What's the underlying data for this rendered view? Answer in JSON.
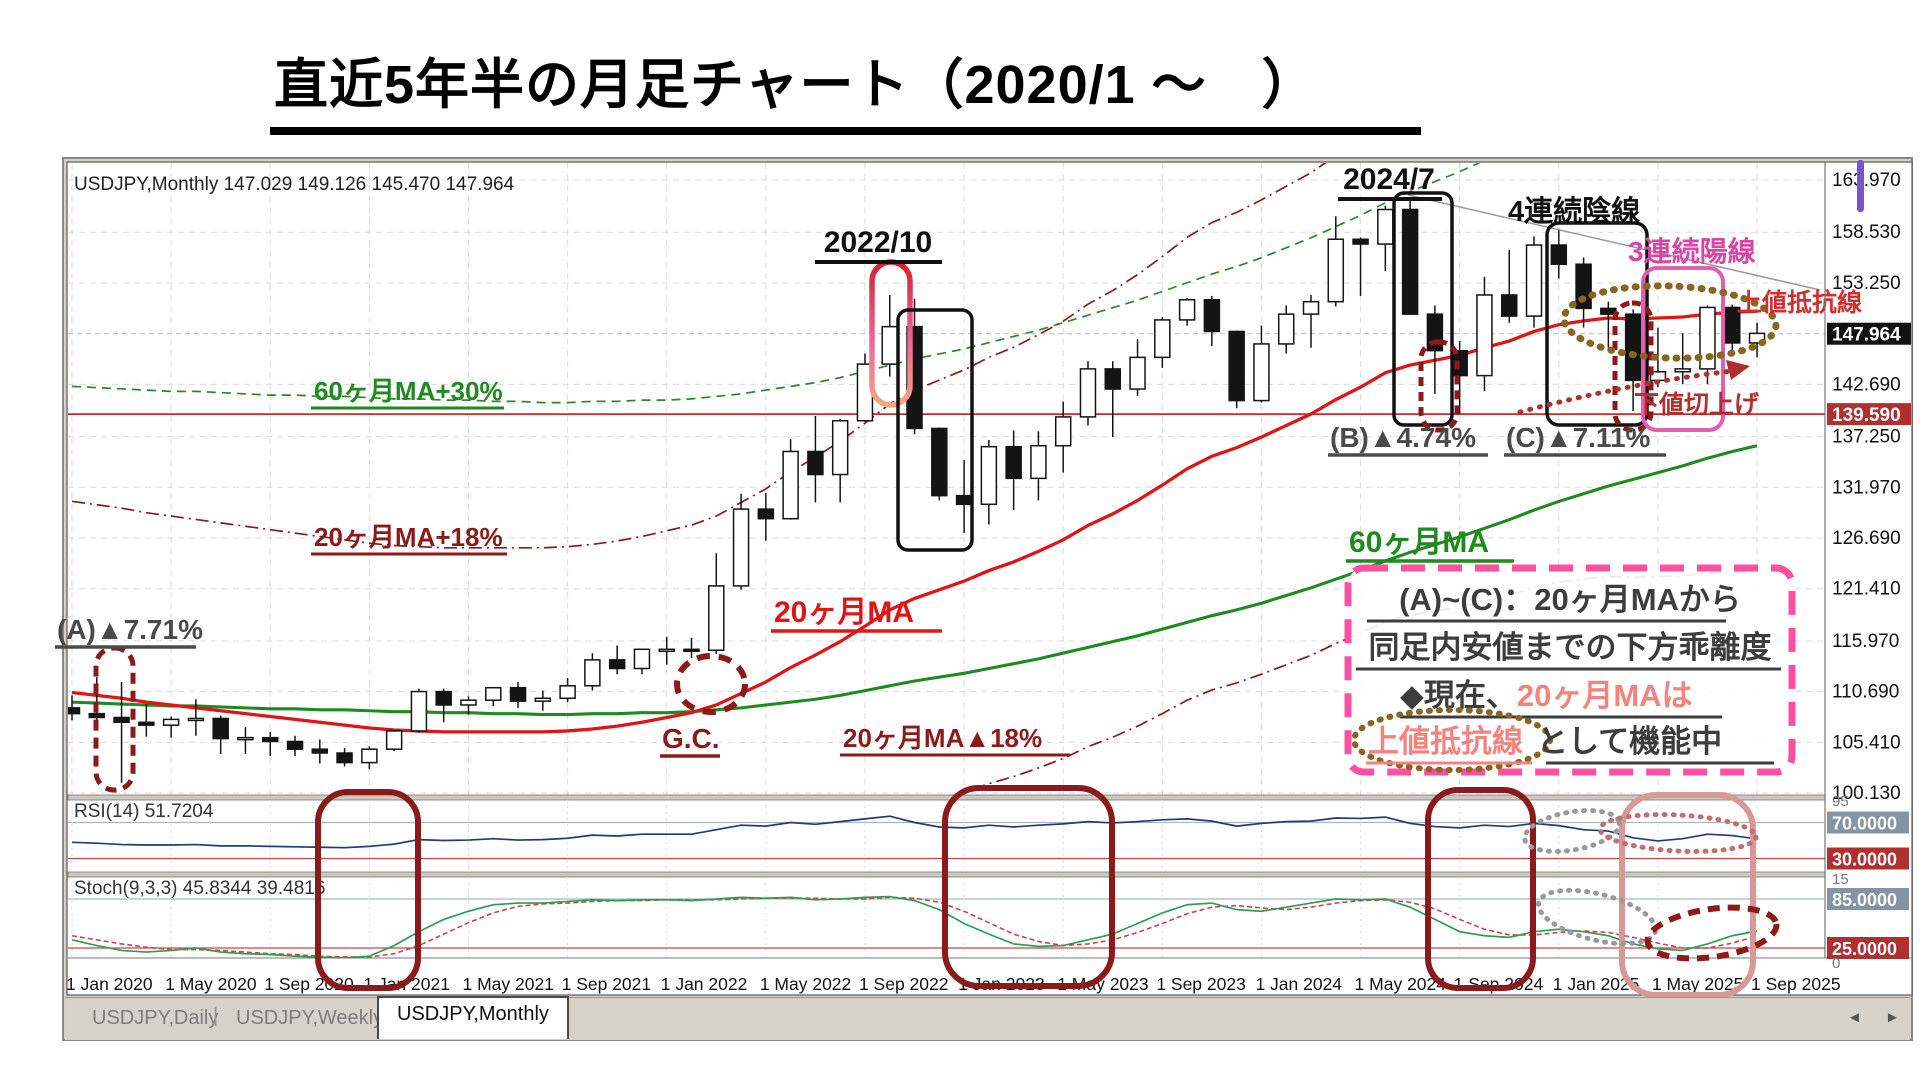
{
  "title": "直近5年半の月足チャート（2020/1 ～　）",
  "window": {
    "header": "USDJPY,Monthly 147.029 149.126 145.470 147.964"
  },
  "tabs": {
    "daily": "USDJPY,Daily",
    "weekly": "USDJPY,Weekly",
    "monthly": "USDJPY,Monthly",
    "separator": "|",
    "prev_arrow": "◄",
    "next_arr": "►"
  },
  "chart_data": {
    "type": "candlestick",
    "symbol": "USDJPY",
    "timeframe": "Monthly",
    "start_month": "2020-01",
    "end_month": "2025-09",
    "ohlc_display": {
      "open": "147.029",
      "high": "149.126",
      "low": "145.470",
      "close": "147.964"
    },
    "price_axis_labels": [
      163.97,
      158.53,
      153.25,
      142.69,
      137.25,
      131.97,
      126.69,
      121.41,
      115.97,
      110.69,
      105.41,
      100.13
    ],
    "current_price": 147.964,
    "current_price_label": "147.964",
    "red_line_price": 139.59,
    "red_line_label": "139.590",
    "x_labels": [
      "1 Jan 2020",
      "1 May 2020",
      "1 Sep 2020",
      "1 Jan 2021",
      "1 May 2021",
      "1 Sep 2021",
      "1 Jan 2022",
      "1 May 2022",
      "1 Sep 2022",
      "1 Jan 2023",
      "1 May 2023",
      "1 Sep 2023",
      "1 Jan 2024",
      "1 May 2024",
      "1 Sep 2024",
      "1 Jan 2025",
      "1 May 2025",
      "1 Sep 2025"
    ],
    "candles": [
      [
        109.0,
        110.3,
        107.7,
        108.4
      ],
      [
        108.4,
        112.2,
        107.5,
        108.0
      ],
      [
        108.0,
        111.7,
        101.2,
        107.5
      ],
      [
        107.5,
        109.4,
        106.0,
        107.2
      ],
      [
        107.2,
        108.1,
        105.9,
        107.8
      ],
      [
        107.8,
        109.9,
        106.1,
        107.9
      ],
      [
        107.9,
        108.2,
        104.2,
        105.8
      ],
      [
        105.8,
        107.0,
        104.2,
        105.9
      ],
      [
        105.9,
        106.5,
        104.0,
        105.5
      ],
      [
        105.5,
        106.1,
        104.0,
        104.7
      ],
      [
        104.7,
        105.7,
        103.2,
        104.3
      ],
      [
        104.3,
        104.8,
        102.9,
        103.3
      ],
      [
        103.3,
        105.0,
        102.6,
        104.7
      ],
      [
        104.7,
        106.7,
        104.5,
        106.6
      ],
      [
        106.6,
        111.0,
        106.4,
        110.7
      ],
      [
        110.7,
        111.0,
        107.5,
        109.3
      ],
      [
        109.3,
        110.2,
        108.3,
        109.8
      ],
      [
        109.8,
        111.1,
        109.2,
        111.1
      ],
      [
        111.1,
        111.7,
        109.0,
        109.7
      ],
      [
        109.7,
        110.8,
        108.7,
        110.0
      ],
      [
        110.0,
        112.1,
        109.6,
        111.3
      ],
      [
        111.3,
        114.7,
        110.8,
        114.0
      ],
      [
        114.0,
        115.5,
        112.5,
        113.1
      ],
      [
        113.1,
        115.0,
        112.5,
        115.1
      ],
      [
        115.1,
        116.4,
        113.5,
        115.1
      ],
      [
        115.1,
        116.3,
        114.2,
        115.0
      ],
      [
        115.0,
        125.1,
        114.6,
        121.7
      ],
      [
        121.7,
        131.3,
        121.3,
        129.7
      ],
      [
        129.7,
        131.4,
        126.4,
        128.7
      ],
      [
        128.7,
        137.0,
        128.6,
        135.7
      ],
      [
        135.7,
        139.4,
        130.4,
        133.3
      ],
      [
        133.3,
        139.1,
        130.4,
        138.9
      ],
      [
        138.9,
        145.9,
        138.8,
        144.8
      ],
      [
        144.8,
        152.0,
        143.5,
        148.7
      ],
      [
        148.7,
        151.6,
        137.5,
        138.1
      ],
      [
        138.1,
        138.2,
        130.6,
        131.1
      ],
      [
        131.1,
        134.8,
        127.2,
        130.2
      ],
      [
        130.2,
        136.9,
        128.1,
        136.2
      ],
      [
        136.2,
        137.9,
        129.6,
        132.9
      ],
      [
        132.9,
        137.8,
        130.6,
        136.3
      ],
      [
        136.3,
        140.9,
        133.5,
        139.3
      ],
      [
        139.3,
        145.1,
        138.4,
        144.3
      ],
      [
        144.3,
        145.1,
        137.2,
        142.2
      ],
      [
        142.2,
        147.4,
        141.5,
        145.5
      ],
      [
        145.5,
        149.7,
        144.4,
        149.4
      ],
      [
        149.4,
        151.7,
        148.8,
        151.5
      ],
      [
        151.5,
        151.9,
        146.7,
        148.2
      ],
      [
        148.2,
        148.3,
        140.2,
        141.0
      ],
      [
        141.0,
        148.8,
        140.8,
        146.9
      ],
      [
        146.9,
        150.9,
        145.9,
        150.0
      ],
      [
        150.0,
        152.0,
        146.5,
        151.3
      ],
      [
        151.3,
        160.2,
        150.8,
        157.8
      ],
      [
        157.8,
        158.0,
        151.9,
        157.3
      ],
      [
        157.3,
        161.3,
        154.5,
        160.9
      ],
      [
        160.9,
        162.0,
        151.9,
        150.0
      ],
      [
        150.0,
        150.9,
        141.7,
        146.2
      ],
      [
        146.2,
        147.2,
        139.6,
        143.6
      ],
      [
        143.6,
        153.9,
        142.0,
        152.0
      ],
      [
        152.0,
        156.7,
        149.1,
        149.8
      ],
      [
        149.8,
        158.1,
        148.6,
        157.2
      ],
      [
        157.2,
        158.9,
        153.7,
        155.2
      ],
      [
        155.2,
        155.9,
        148.6,
        150.6
      ],
      [
        150.6,
        151.3,
        146.5,
        150.0
      ],
      [
        150.0,
        150.5,
        139.9,
        143.1
      ],
      [
        143.1,
        148.6,
        142.4,
        144.0
      ],
      [
        144.0,
        148.0,
        142.7,
        144.3
      ],
      [
        144.3,
        150.9,
        142.7,
        150.7
      ],
      [
        150.7,
        151.0,
        146.2,
        147.0
      ],
      [
        147.0,
        149.1,
        145.5,
        148.0
      ]
    ],
    "ma20": [
      110.6,
      110.3,
      110.0,
      109.6,
      109.3,
      109.0,
      108.7,
      108.4,
      108.1,
      107.8,
      107.5,
      107.2,
      106.9,
      106.7,
      106.6,
      106.5,
      106.5,
      106.5,
      106.5,
      106.5,
      106.6,
      106.8,
      107.1,
      107.5,
      108.0,
      108.5,
      109.3,
      110.5,
      111.7,
      113.2,
      114.5,
      115.9,
      117.5,
      119.2,
      120.4,
      121.3,
      122.2,
      123.3,
      124.2,
      125.3,
      126.5,
      128.0,
      129.2,
      130.6,
      132.2,
      133.9,
      135.2,
      136.1,
      137.2,
      138.4,
      139.6,
      141.1,
      142.4,
      143.9,
      144.7,
      145.2,
      145.7,
      146.5,
      147.2,
      148.2,
      148.9,
      149.3,
      149.6,
      149.5,
      149.6,
      149.7,
      150.0,
      150.2,
      150.3
    ],
    "ma60": [
      109.6,
      109.5,
      109.4,
      109.3,
      109.2,
      109.2,
      109.1,
      109.0,
      108.9,
      108.9,
      108.8,
      108.8,
      108.7,
      108.6,
      108.6,
      108.5,
      108.5,
      108.4,
      108.4,
      108.3,
      108.3,
      108.4,
      108.4,
      108.5,
      108.5,
      108.6,
      108.8,
      109.0,
      109.3,
      109.6,
      109.9,
      110.3,
      110.8,
      111.3,
      111.8,
      112.2,
      112.6,
      113.1,
      113.6,
      114.1,
      114.7,
      115.3,
      115.9,
      116.5,
      117.2,
      117.9,
      118.6,
      119.2,
      119.9,
      120.7,
      121.5,
      122.4,
      123.3,
      124.3,
      125.2,
      126.0,
      126.8,
      127.7,
      128.6,
      129.6,
      130.5,
      131.3,
      132.1,
      132.8,
      133.5,
      134.2,
      135.0,
      135.7,
      136.3
    ],
    "envelopes": {
      "ma20_upper_pct": 18,
      "ma20_lower_pct": 18,
      "ma60_upper_pct": 30
    },
    "rsi": {
      "label": "RSI(14) 51.7204",
      "levels": [
        70,
        30
      ],
      "level_labels": [
        "70.0000",
        "30.0000"
      ],
      "scale_labels": {
        "top": "95",
        "bottom": "15"
      },
      "values": [
        48,
        47,
        45.5,
        45,
        45,
        45.5,
        44,
        44,
        43.5,
        43,
        42.5,
        42,
        43.5,
        46,
        51,
        50,
        50.5,
        52,
        50.5,
        51,
        52.5,
        56,
        55,
        57,
        57,
        57,
        62,
        67,
        66,
        70,
        68,
        71,
        74,
        77,
        70,
        65,
        64,
        67,
        65,
        67,
        68.5,
        71,
        69.5,
        71,
        73,
        74,
        71.5,
        66,
        69,
        71,
        71.5,
        75,
        74.5,
        76,
        69,
        65.5,
        64,
        67,
        65.5,
        69,
        66.5,
        62,
        60.5,
        53,
        49.5,
        52,
        57,
        55.5,
        51.7
      ]
    },
    "stoch": {
      "label": "Stoch(9,3,3) 45.8344 39.4816",
      "levels": [
        85,
        25
      ],
      "level_labels": [
        "85.0000",
        "25.0000"
      ],
      "scale_labels": {
        "bottom": "0"
      },
      "k": [
        35,
        28,
        22,
        20,
        22,
        25,
        20,
        18,
        17,
        15,
        14,
        13,
        15,
        28,
        45,
        60,
        70,
        78,
        80,
        80,
        82,
        84,
        83,
        84,
        84,
        83,
        85,
        87,
        86,
        87,
        84,
        85,
        87,
        88,
        83,
        72,
        55,
        42,
        30,
        27,
        28,
        35,
        42,
        55,
        68,
        78,
        80,
        72,
        70,
        75,
        80,
        85,
        84,
        85,
        75,
        60,
        45,
        40,
        38,
        45,
        48,
        45,
        40,
        30,
        24,
        22,
        30,
        40,
        45.8
      ],
      "d": [
        40,
        35,
        30,
        26,
        23,
        23,
        22,
        20,
        18,
        17,
        15,
        14,
        14,
        18,
        28,
        42,
        56,
        68,
        76,
        79,
        80,
        82,
        83,
        83,
        84,
        84,
        84,
        85,
        86,
        86,
        86,
        85,
        85,
        87,
        86,
        81,
        70,
        56,
        42,
        33,
        28,
        30,
        35,
        44,
        55,
        67,
        75,
        77,
        74,
        72,
        75,
        80,
        83,
        84,
        81,
        73,
        60,
        48,
        41,
        41,
        44,
        46,
        44,
        38,
        31,
        25,
        25,
        31,
        39.5
      ]
    }
  },
  "annotations": {
    "oct2022": "2022/10",
    "jul2024": "2024/7",
    "four_bearish": "4連続陰線",
    "three_bullish": "3連続陽線",
    "upper_resistance": "上値抵抗線",
    "higher_lows": "下値切上げ",
    "a_label": "(A)▲7.71%",
    "b_label": "(B)▲4.74%",
    "c_label": "(C)▲7.11%",
    "golden_cross": "G.C.",
    "ma20_label": "20ヶ月MA",
    "ma60_label": "60ヶ月MA",
    "ma60_plus30": "60ヶ月MA+30%",
    "ma20_plus18": "20ヶ月MA+18%",
    "ma20_minus18": "20ヶ月MA▲18%",
    "info_box": {
      "line1": "(A)~(C)：20ヶ月MAから",
      "line2": "同足内安値までの下方乖離度",
      "line3_dark": "◆現在、",
      "line3_accent": "20ヶ月MAは",
      "line4_accent": "上値抵抗線",
      "line4_dark": "として機能中"
    }
  },
  "colors": {
    "ma20": "#e01515",
    "ma60": "#1e8b1e",
    "dark_red": "#8b1a1a",
    "maroon": "#b03030",
    "pink_box": "#ff4fa0",
    "magenta": "#d944a7",
    "salmon": "#f4827d",
    "brown": "#8a651f",
    "rsi_line": "#223a7a",
    "stoch_k": "#2e9e4f",
    "stoch_d": "#cc4455",
    "level_gray": "#8494a4",
    "level_red": "#b03030",
    "grid": "#dcdcdc",
    "text_gray": "#4a4a4a",
    "resistance_red": "#d03030",
    "purple": "#7a52cc"
  }
}
